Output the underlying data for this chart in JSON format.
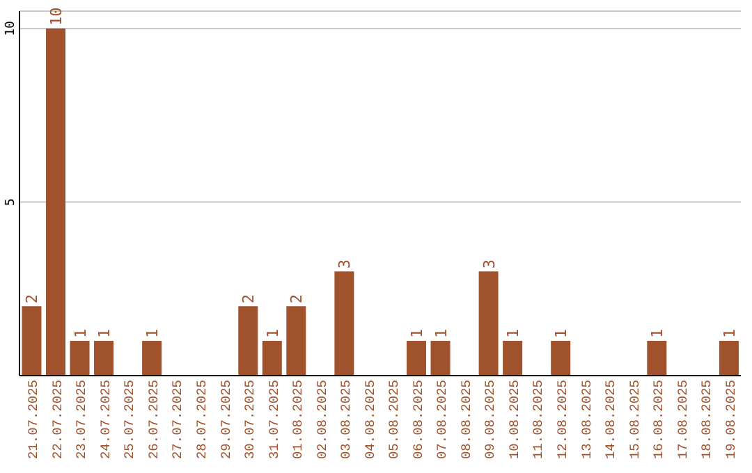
{
  "chart_data": {
    "type": "bar",
    "categories": [
      "21.07.2025",
      "22.07.2025",
      "23.07.2025",
      "24.07.2025",
      "25.07.2025",
      "26.07.2025",
      "27.07.2025",
      "28.07.2025",
      "29.07.2025",
      "30.07.2025",
      "31.07.2025",
      "01.08.2025",
      "02.08.2025",
      "03.08.2025",
      "04.08.2025",
      "05.08.2025",
      "06.08.2025",
      "07.08.2025",
      "08.08.2025",
      "09.08.2025",
      "10.08.2025",
      "11.08.2025",
      "12.08.2025",
      "13.08.2025",
      "14.08.2025",
      "15.08.2025",
      "16.08.2025",
      "17.08.2025",
      "18.08.2025",
      "19.08.2025"
    ],
    "values": [
      2,
      10,
      1,
      1,
      0,
      1,
      0,
      0,
      0,
      2,
      1,
      2,
      0,
      3,
      0,
      0,
      1,
      1,
      0,
      3,
      1,
      0,
      1,
      0,
      0,
      0,
      1,
      0,
      0,
      1
    ],
    "value_labels": [
      "2",
      "10",
      "1",
      "1",
      null,
      "1",
      null,
      null,
      null,
      "2",
      "1",
      "2",
      null,
      "3",
      null,
      null,
      "1",
      "1",
      null,
      "3",
      "1",
      null,
      "1",
      null,
      null,
      null,
      "1",
      null,
      null,
      "1"
    ],
    "color": "#a0522d",
    "ylim": [
      0,
      10.5
    ],
    "yticks": [
      5,
      10
    ],
    "grid": "y"
  }
}
